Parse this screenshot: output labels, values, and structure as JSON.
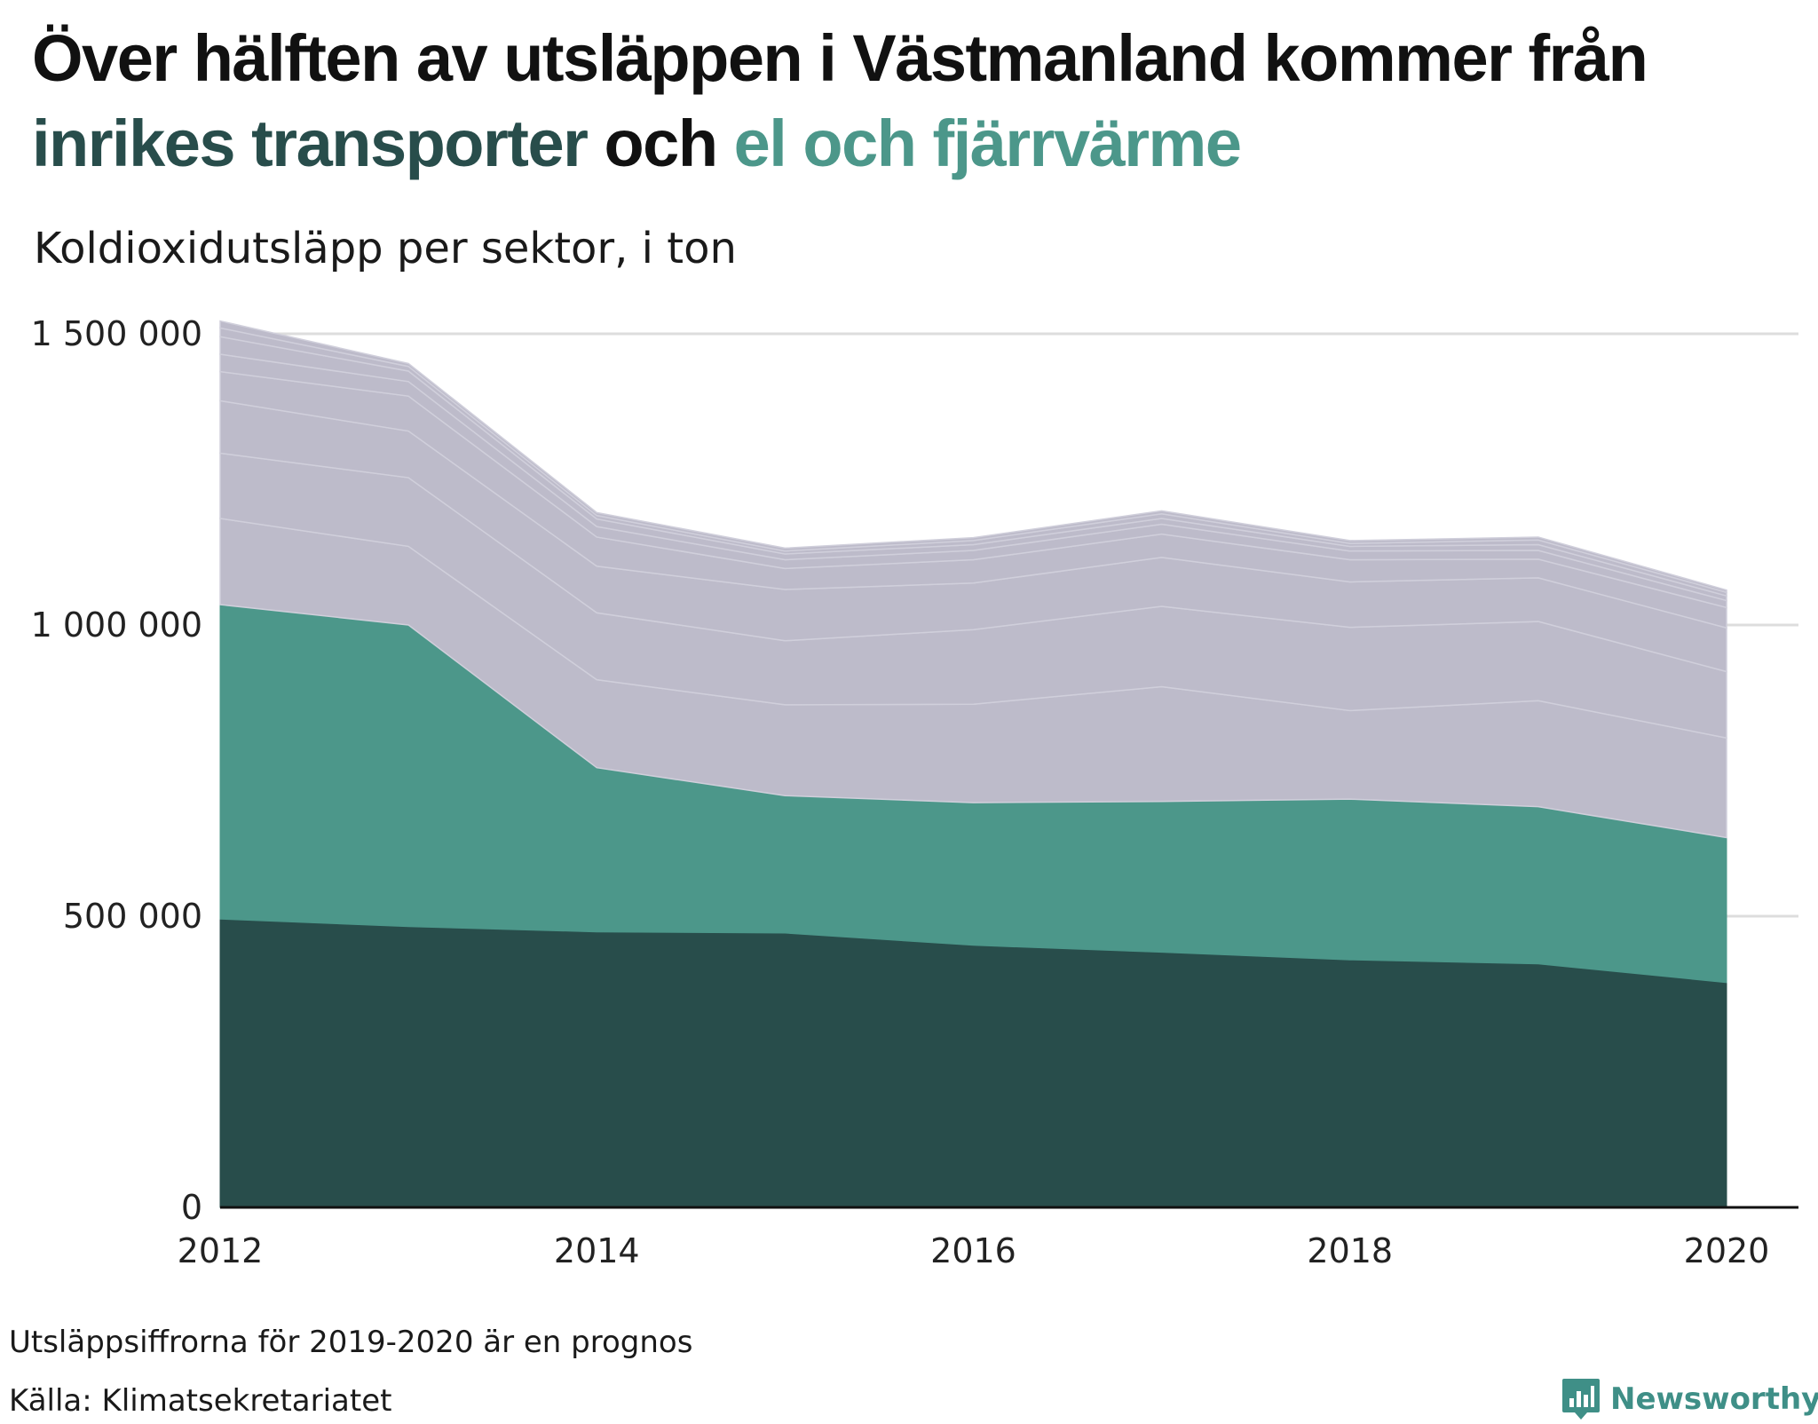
{
  "title": {
    "line1": "Över hälften av utsläppen i Västmanland kommer från",
    "highlight1": "inrikes transporter",
    "connector": "och",
    "highlight2": "el och fjärrvärme"
  },
  "colors": {
    "inrikes": "#284d4b",
    "el": "#4c978a",
    "others": "#bdbbca",
    "highlight1": "#284d4b",
    "highlight2": "#4c978a",
    "grid": "#dddddd",
    "axis": "#111111"
  },
  "chart_data": {
    "type": "area",
    "stacked": true,
    "subtitle": "Koldioxidutsläpp per sektor, i ton",
    "x": [
      2012,
      2013,
      2014,
      2015,
      2016,
      2017,
      2018,
      2019,
      2020
    ],
    "x_ticks": [
      "2012",
      "2014",
      "2016",
      "2018",
      "2020"
    ],
    "y_ticks": [
      "0",
      "500 000",
      "1 000 000",
      "1 500 000"
    ],
    "y_tick_values": [
      0,
      500000,
      1000000,
      1500000
    ],
    "ylim": [
      0,
      1500000
    ],
    "grid": true,
    "series": [
      {
        "values": [
          495000,
          482000,
          473000,
          471000,
          450000,
          438000,
          425000,
          418000,
          386000
        ]
      },
      {
        "values": [
          540000,
          518000,
          282000,
          236000,
          245000,
          259000,
          276000,
          270000,
          249000
        ]
      },
      {
        "values": [
          148000,
          135000,
          151000,
          156000,
          169000,
          197000,
          152000,
          182000,
          171000
        ]
      },
      {
        "values": [
          112000,
          118000,
          115000,
          110000,
          128000,
          138000,
          143000,
          136000,
          114000
        ]
      },
      {
        "values": [
          90000,
          80000,
          80000,
          88000,
          80000,
          84000,
          78000,
          75000,
          75000
        ]
      },
      {
        "values": [
          50000,
          60000,
          50000,
          36000,
          40000,
          40000,
          38000,
          32000,
          35000
        ]
      },
      {
        "values": [
          30000,
          25000,
          18000,
          15000,
          16000,
          17000,
          15000,
          15000,
          12000
        ]
      },
      {
        "values": [
          30000,
          18000,
          13000,
          10000,
          10000,
          10000,
          8000,
          10000,
          8000
        ]
      },
      {
        "values": [
          15000,
          8000,
          6000,
          5000,
          7000,
          8000,
          5000,
          8000,
          6000
        ]
      },
      {
        "values": [
          12000,
          5000,
          5000,
          5000,
          5000,
          5000,
          5000,
          5000,
          4000
        ]
      }
    ]
  },
  "notes": {
    "prognos": "Utsläppsiffrorna för 2019-2020 är en prognos",
    "source": "Källa: Klimatsekretariatet"
  },
  "logo": {
    "text": "Newsworthy",
    "icon": "bar-chart-speech-bubble-icon"
  }
}
